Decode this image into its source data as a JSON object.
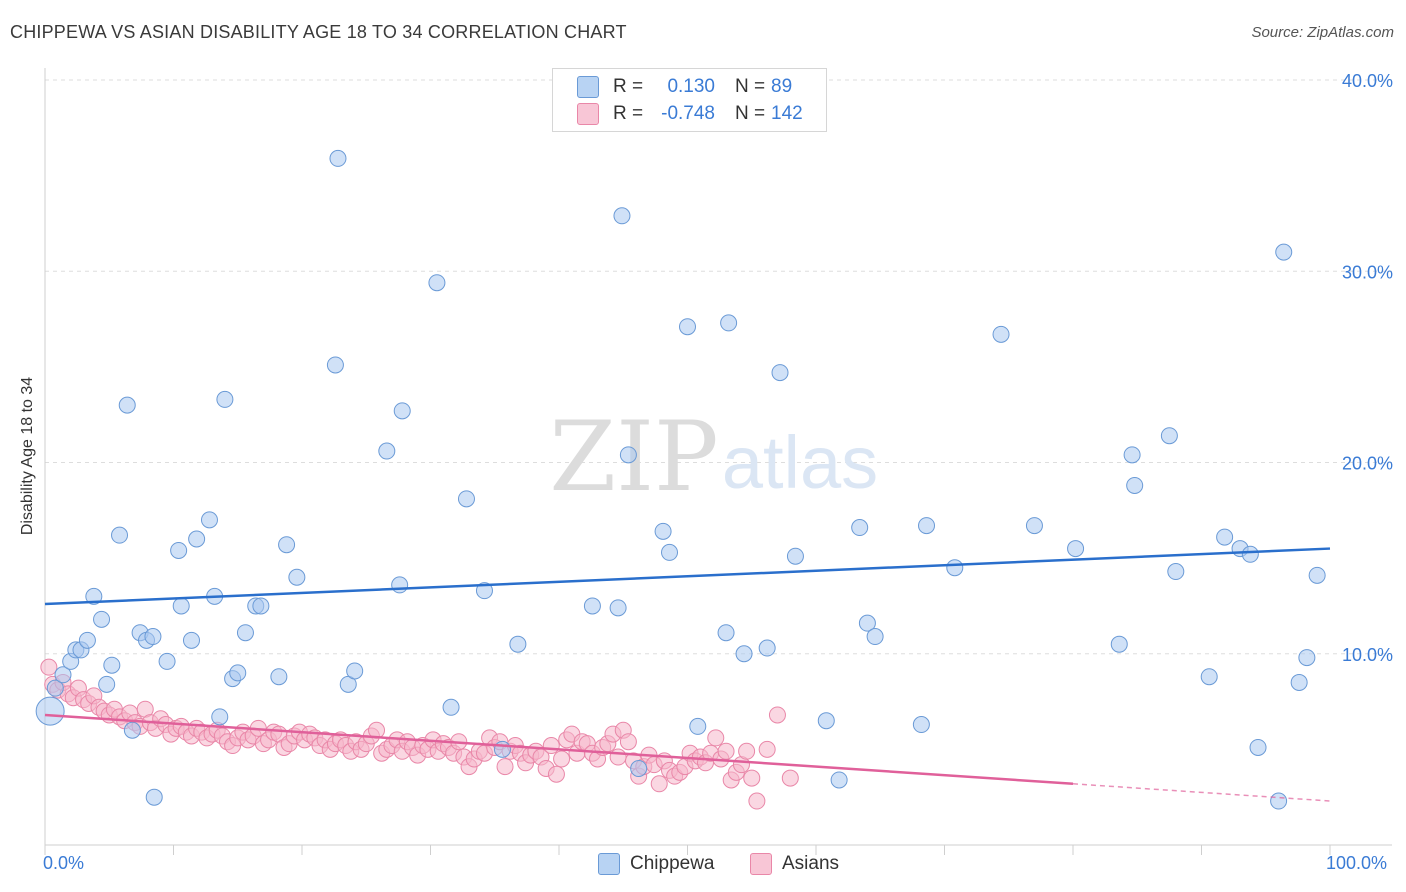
{
  "header": {
    "title": "CHIPPEWA VS ASIAN DISABILITY AGE 18 TO 34 CORRELATION CHART",
    "source": "Source: ZipAtlas.com"
  },
  "legend": {
    "rows": [
      {
        "r_label": "R =",
        "r_value": "0.130",
        "n_label": "N =",
        "n_value": "89"
      },
      {
        "r_label": "R =",
        "r_value": "-0.748",
        "n_label": "N =",
        "n_value": "142"
      }
    ]
  },
  "bottom_legend": {
    "items": [
      "Chippewa",
      "Asians"
    ]
  },
  "x_tick_labels": {
    "left": "0.0%",
    "right": "100.0%"
  },
  "watermark": {
    "zip": "ZIP",
    "atlas": "atlas"
  },
  "colors": {
    "chippewa_fill": "#a9c9f0",
    "chippewa_stroke": "#6a9ad6",
    "chippewa_line": "#2a6fcc",
    "asians_fill": "#f6b6cb",
    "asians_stroke": "#e987a8",
    "asians_line": "#e0609a",
    "accent_text": "#3a7bd5"
  },
  "chart_data": {
    "type": "scatter",
    "title": "CHIPPEWA VS ASIAN DISABILITY AGE 18 TO 34 CORRELATION CHART",
    "xlabel": "",
    "ylabel": "Disability Age 18 to 34",
    "xlim": [
      0,
      100
    ],
    "ylim": [
      0,
      40
    ],
    "y_ticks": [
      10,
      20,
      30,
      40
    ],
    "y_tick_labels": [
      "10.0%",
      "20.0%",
      "30.0%",
      "40.0%"
    ],
    "x_tick_labels": [
      "0.0%",
      "100.0%"
    ],
    "grid": "horizontal dashed",
    "legend_position": "top-center",
    "series": [
      {
        "name": "Chippewa",
        "r": 0.13,
        "n": 89,
        "trend": {
          "x": [
            0,
            100
          ],
          "y": [
            12.6,
            15.5
          ]
        },
        "points": [
          [
            0.4,
            7.0
          ],
          [
            0.8,
            8.2
          ],
          [
            1.4,
            8.9
          ],
          [
            2.0,
            9.6
          ],
          [
            2.4,
            10.2
          ],
          [
            2.8,
            10.2
          ],
          [
            3.3,
            10.7
          ],
          [
            3.8,
            13.0
          ],
          [
            4.4,
            11.8
          ],
          [
            4.8,
            8.4
          ],
          [
            5.2,
            9.4
          ],
          [
            5.8,
            16.2
          ],
          [
            6.4,
            23.0
          ],
          [
            6.8,
            6.0
          ],
          [
            7.4,
            11.1
          ],
          [
            7.9,
            10.7
          ],
          [
            8.4,
            10.9
          ],
          [
            8.5,
            2.5
          ],
          [
            9.5,
            9.6
          ],
          [
            10.4,
            15.4
          ],
          [
            10.6,
            12.5
          ],
          [
            11.4,
            10.7
          ],
          [
            11.8,
            16.0
          ],
          [
            12.8,
            17.0
          ],
          [
            13.2,
            13.0
          ],
          [
            13.6,
            6.7
          ],
          [
            14.0,
            23.3
          ],
          [
            14.6,
            8.7
          ],
          [
            15.0,
            9.0
          ],
          [
            15.6,
            11.1
          ],
          [
            16.4,
            12.5
          ],
          [
            16.8,
            12.5
          ],
          [
            18.2,
            8.8
          ],
          [
            18.8,
            15.7
          ],
          [
            19.6,
            14.0
          ],
          [
            22.6,
            25.1
          ],
          [
            22.8,
            35.9
          ],
          [
            23.6,
            8.4
          ],
          [
            24.1,
            9.1
          ],
          [
            26.6,
            20.6
          ],
          [
            27.6,
            13.6
          ],
          [
            27.8,
            22.7
          ],
          [
            30.5,
            29.4
          ],
          [
            31.6,
            7.2
          ],
          [
            32.8,
            18.1
          ],
          [
            34.2,
            13.3
          ],
          [
            35.6,
            5.0
          ],
          [
            36.8,
            10.5
          ],
          [
            42.6,
            12.5
          ],
          [
            44.6,
            12.4
          ],
          [
            44.9,
            32.9
          ],
          [
            45.4,
            20.4
          ],
          [
            46.2,
            4.0
          ],
          [
            48.1,
            16.4
          ],
          [
            48.6,
            15.3
          ],
          [
            50.0,
            27.1
          ],
          [
            50.8,
            6.2
          ],
          [
            53.0,
            11.1
          ],
          [
            53.2,
            27.3
          ],
          [
            54.4,
            10.0
          ],
          [
            56.2,
            10.3
          ],
          [
            57.2,
            24.7
          ],
          [
            58.4,
            15.1
          ],
          [
            60.8,
            6.5
          ],
          [
            61.8,
            3.4
          ],
          [
            63.4,
            16.6
          ],
          [
            64.0,
            11.6
          ],
          [
            64.6,
            10.9
          ],
          [
            68.2,
            6.3
          ],
          [
            68.6,
            16.7
          ],
          [
            70.8,
            14.5
          ],
          [
            74.4,
            26.7
          ],
          [
            77.0,
            16.7
          ],
          [
            80.2,
            15.5
          ],
          [
            83.6,
            10.5
          ],
          [
            84.6,
            20.4
          ],
          [
            84.8,
            18.8
          ],
          [
            87.5,
            21.4
          ],
          [
            88.0,
            14.3
          ],
          [
            90.6,
            8.8
          ],
          [
            91.8,
            16.1
          ],
          [
            93.0,
            15.5
          ],
          [
            93.8,
            15.2
          ],
          [
            94.4,
            5.1
          ],
          [
            96.0,
            2.3
          ],
          [
            96.4,
            31.0
          ],
          [
            97.6,
            8.5
          ],
          [
            98.2,
            9.8
          ],
          [
            99.0,
            14.1
          ]
        ]
      },
      {
        "name": "Asians",
        "r": -0.748,
        "n": 142,
        "trend": {
          "x": [
            0,
            80
          ],
          "y": [
            6.8,
            3.2
          ]
        },
        "trend_extension": {
          "x": [
            80,
            100
          ],
          "y": [
            3.2,
            2.3
          ]
        },
        "points": [
          [
            0.3,
            9.3
          ],
          [
            0.6,
            8.4
          ],
          [
            1.0,
            8.1
          ],
          [
            1.4,
            8.5
          ],
          [
            1.8,
            7.9
          ],
          [
            2.2,
            7.7
          ],
          [
            2.6,
            8.2
          ],
          [
            3.0,
            7.6
          ],
          [
            3.4,
            7.4
          ],
          [
            3.8,
            7.8
          ],
          [
            4.2,
            7.2
          ],
          [
            4.6,
            7.0
          ],
          [
            5.0,
            6.8
          ],
          [
            5.4,
            7.1
          ],
          [
            5.8,
            6.7
          ],
          [
            6.2,
            6.5
          ],
          [
            6.6,
            6.9
          ],
          [
            7.0,
            6.4
          ],
          [
            7.4,
            6.2
          ],
          [
            7.8,
            7.1
          ],
          [
            8.2,
            6.4
          ],
          [
            8.6,
            6.1
          ],
          [
            9.0,
            6.6
          ],
          [
            9.4,
            6.3
          ],
          [
            9.8,
            5.8
          ],
          [
            10.2,
            6.1
          ],
          [
            10.6,
            6.2
          ],
          [
            11.0,
            5.9
          ],
          [
            11.4,
            5.7
          ],
          [
            11.8,
            6.1
          ],
          [
            12.2,
            5.9
          ],
          [
            12.6,
            5.6
          ],
          [
            13.0,
            5.8
          ],
          [
            13.4,
            6.0
          ],
          [
            13.8,
            5.7
          ],
          [
            14.2,
            5.4
          ],
          [
            14.6,
            5.2
          ],
          [
            15.0,
            5.6
          ],
          [
            15.4,
            5.9
          ],
          [
            15.8,
            5.5
          ],
          [
            16.2,
            5.7
          ],
          [
            16.6,
            6.1
          ],
          [
            17.0,
            5.3
          ],
          [
            17.4,
            5.5
          ],
          [
            17.8,
            5.9
          ],
          [
            18.2,
            5.8
          ],
          [
            18.6,
            5.1
          ],
          [
            19.0,
            5.3
          ],
          [
            19.4,
            5.7
          ],
          [
            19.8,
            5.9
          ],
          [
            20.2,
            5.5
          ],
          [
            20.6,
            5.8
          ],
          [
            21.0,
            5.6
          ],
          [
            21.4,
            5.2
          ],
          [
            21.8,
            5.5
          ],
          [
            22.2,
            5.0
          ],
          [
            22.6,
            5.3
          ],
          [
            23.0,
            5.5
          ],
          [
            23.4,
            5.2
          ],
          [
            23.8,
            4.9
          ],
          [
            24.2,
            5.4
          ],
          [
            24.6,
            5.0
          ],
          [
            25.0,
            5.3
          ],
          [
            25.4,
            5.7
          ],
          [
            25.8,
            6.0
          ],
          [
            26.2,
            4.8
          ],
          [
            26.6,
            5.0
          ],
          [
            27.0,
            5.2
          ],
          [
            27.4,
            5.5
          ],
          [
            27.8,
            4.9
          ],
          [
            28.2,
            5.4
          ],
          [
            28.6,
            5.1
          ],
          [
            29.0,
            4.7
          ],
          [
            29.4,
            5.2
          ],
          [
            29.8,
            5.0
          ],
          [
            30.2,
            5.5
          ],
          [
            30.6,
            4.9
          ],
          [
            31.0,
            5.3
          ],
          [
            31.4,
            5.1
          ],
          [
            31.8,
            4.8
          ],
          [
            32.2,
            5.4
          ],
          [
            32.6,
            4.6
          ],
          [
            33.0,
            4.1
          ],
          [
            33.4,
            4.5
          ],
          [
            33.8,
            4.9
          ],
          [
            34.2,
            4.8
          ],
          [
            34.6,
            5.6
          ],
          [
            35.0,
            5.1
          ],
          [
            35.4,
            5.4
          ],
          [
            35.8,
            4.1
          ],
          [
            36.2,
            4.9
          ],
          [
            36.6,
            5.2
          ],
          [
            37.0,
            4.8
          ],
          [
            37.4,
            4.3
          ],
          [
            37.8,
            4.7
          ],
          [
            38.2,
            4.9
          ],
          [
            38.6,
            4.6
          ],
          [
            39.0,
            4.0
          ],
          [
            39.4,
            5.2
          ],
          [
            39.8,
            3.7
          ],
          [
            40.2,
            4.5
          ],
          [
            40.6,
            5.5
          ],
          [
            41.0,
            5.8
          ],
          [
            41.4,
            4.8
          ],
          [
            41.8,
            5.4
          ],
          [
            42.2,
            5.3
          ],
          [
            42.6,
            4.8
          ],
          [
            43.0,
            4.5
          ],
          [
            43.4,
            5.1
          ],
          [
            43.8,
            5.3
          ],
          [
            44.2,
            5.8
          ],
          [
            44.6,
            4.6
          ],
          [
            45.0,
            6.0
          ],
          [
            45.4,
            5.4
          ],
          [
            45.8,
            4.4
          ],
          [
            46.2,
            3.6
          ],
          [
            46.6,
            4.1
          ],
          [
            47.0,
            4.7
          ],
          [
            47.4,
            4.2
          ],
          [
            47.8,
            3.2
          ],
          [
            48.2,
            4.4
          ],
          [
            48.6,
            3.9
          ],
          [
            49.0,
            3.6
          ],
          [
            49.4,
            3.8
          ],
          [
            49.8,
            4.1
          ],
          [
            50.2,
            4.8
          ],
          [
            50.6,
            4.4
          ],
          [
            51.0,
            4.6
          ],
          [
            51.4,
            4.3
          ],
          [
            51.8,
            4.8
          ],
          [
            52.2,
            5.6
          ],
          [
            52.6,
            4.5
          ],
          [
            53.0,
            4.9
          ],
          [
            53.4,
            3.4
          ],
          [
            53.8,
            3.8
          ],
          [
            54.2,
            4.2
          ],
          [
            54.6,
            4.9
          ],
          [
            55.0,
            3.5
          ],
          [
            55.4,
            2.3
          ],
          [
            56.2,
            5.0
          ],
          [
            57.0,
            6.8
          ],
          [
            58.0,
            3.5
          ]
        ]
      }
    ]
  }
}
